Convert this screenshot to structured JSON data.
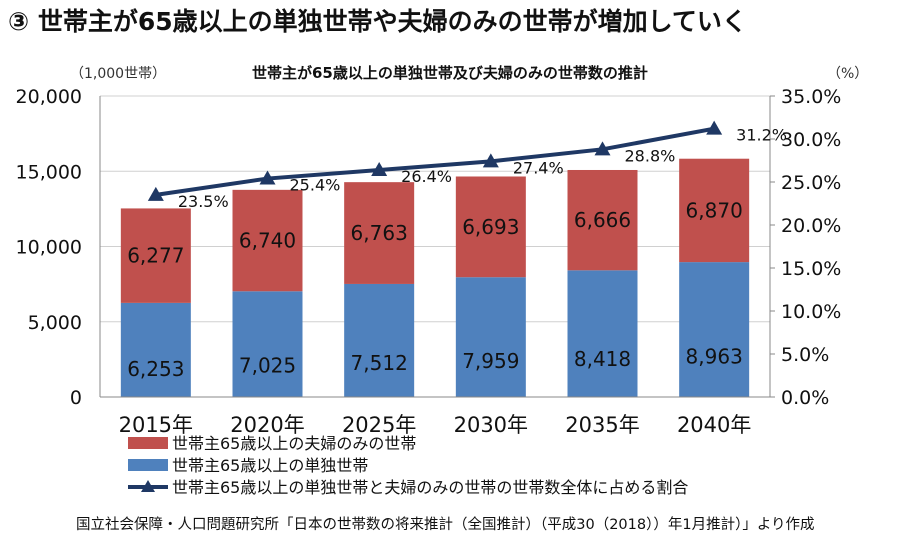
{
  "heading": "③ 世帯主が65歳以上の単独世帯や夫婦のみの世帯が増加していく",
  "source": "国立社会保障・人口問題研究所「日本の世帯数の将来推計（全国推計）（平成30（2018））年1月推計）」より作成",
  "colors": {
    "couple": "#c0504d",
    "single": "#4f81bd",
    "line": "#1f3864",
    "grid": "#d0d0d0"
  },
  "chart_data": {
    "type": "bar",
    "stacked": true,
    "title": "世帯主が65歳以上の単独世帯及び夫婦のみの世帯数の推計",
    "y_left_unit": "（1,000世帯）",
    "y_right_unit": "（%）",
    "ylim_left": [
      0,
      20000
    ],
    "ylim_right": [
      0,
      35
    ],
    "y_left_ticks": [
      "0",
      "5,000",
      "10,000",
      "15,000",
      "20,000"
    ],
    "y_right_ticks": [
      "0.0%",
      "5.0%",
      "10.0%",
      "15.0%",
      "20.0%",
      "25.0%",
      "30.0%",
      "35.0%"
    ],
    "categories": [
      "2015年",
      "2020年",
      "2025年",
      "2030年",
      "2035年",
      "2040年"
    ],
    "series": [
      {
        "name": "世帯主65歳以上の単独世帯",
        "kind": "bar",
        "values": [
          6253,
          7025,
          7512,
          7959,
          8418,
          8963
        ],
        "labels": [
          "6,253",
          "7,025",
          "7,512",
          "7,959",
          "8,418",
          "8,963"
        ]
      },
      {
        "name": "世帯主65歳以上の夫婦のみの世帯",
        "kind": "bar",
        "values": [
          6277,
          6740,
          6763,
          6693,
          6666,
          6870
        ],
        "labels": [
          "6,277",
          "6,740",
          "6,763",
          "6,693",
          "6,666",
          "6,870"
        ]
      },
      {
        "name": "世帯主65歳以上の単独世帯と夫婦のみの世帯の世帯数全体に占める割合",
        "kind": "line",
        "axis": "right",
        "values": [
          23.5,
          25.4,
          26.4,
          27.4,
          28.8,
          31.2
        ],
        "labels": [
          "23.5%",
          "25.4%",
          "26.4%",
          "27.4%",
          "28.8%",
          "31.2%"
        ]
      }
    ],
    "legend": [
      {
        "name": "世帯主65歳以上の夫婦のみの世帯",
        "symbol": "bar-red"
      },
      {
        "name": "世帯主65歳以上の単独世帯",
        "symbol": "bar-blue"
      },
      {
        "name": "世帯主65歳以上の単独世帯と夫婦のみの世帯の世帯数全体に占める割合",
        "symbol": "line-triangle"
      }
    ],
    "legend_position": "bottom-left",
    "grid": true
  }
}
